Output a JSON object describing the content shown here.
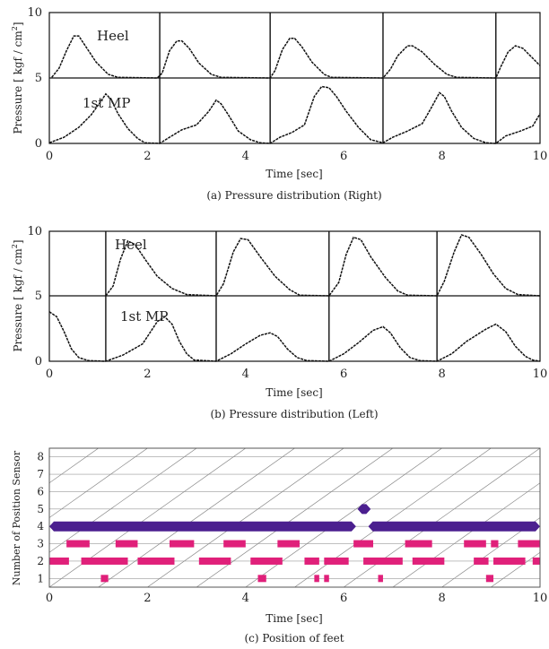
{
  "chart_data": [
    {
      "type": "line",
      "caption": "(a) Pressure distribution (Right)",
      "xlabel": "Time [sec]",
      "ylabel": "Pressure [ kgf / cm",
      "ylabel_sup": "2",
      "ylabel_end": "]",
      "xlim": [
        0,
        10
      ],
      "x_ticks": [
        "0",
        "2",
        "4",
        "6",
        "8",
        "10"
      ],
      "ylim_each": [
        0,
        5
      ],
      "y_ticks": [
        "0",
        "5",
        "10"
      ],
      "step_markers": [
        2.25,
        4.5,
        6.8,
        9.1
      ],
      "series": [
        {
          "name": "Heel",
          "points": [
            [
              0.05,
              0.05
            ],
            [
              0.2,
              0.8
            ],
            [
              0.35,
              2.2
            ],
            [
              0.5,
              3.4
            ],
            [
              0.6,
              3.4
            ],
            [
              0.75,
              2.5
            ],
            [
              0.95,
              1.3
            ],
            [
              1.2,
              0.3
            ],
            [
              1.4,
              0.05
            ],
            [
              2.2,
              0.0
            ],
            [
              2.3,
              0.4
            ],
            [
              2.45,
              2.2
            ],
            [
              2.6,
              3.0
            ],
            [
              2.7,
              3.0
            ],
            [
              2.85,
              2.4
            ],
            [
              3.05,
              1.2
            ],
            [
              3.3,
              0.3
            ],
            [
              3.5,
              0.05
            ],
            [
              4.5,
              0.0
            ],
            [
              4.6,
              0.6
            ],
            [
              4.75,
              2.3
            ],
            [
              4.9,
              3.2
            ],
            [
              5.0,
              3.2
            ],
            [
              5.15,
              2.5
            ],
            [
              5.35,
              1.3
            ],
            [
              5.6,
              0.3
            ],
            [
              5.75,
              0.05
            ],
            [
              6.8,
              0.0
            ],
            [
              6.95,
              0.7
            ],
            [
              7.1,
              1.8
            ],
            [
              7.3,
              2.6
            ],
            [
              7.4,
              2.6
            ],
            [
              7.6,
              2.1
            ],
            [
              7.85,
              1.1
            ],
            [
              8.1,
              0.3
            ],
            [
              8.3,
              0.05
            ],
            [
              9.1,
              0.0
            ],
            [
              9.2,
              0.9
            ],
            [
              9.35,
              2.1
            ],
            [
              9.5,
              2.6
            ],
            [
              9.65,
              2.4
            ],
            [
              9.85,
              1.6
            ],
            [
              10.0,
              1.0
            ]
          ]
        },
        {
          "name": "1st MP",
          "points": [
            [
              0.0,
              0.05
            ],
            [
              0.3,
              0.5
            ],
            [
              0.6,
              1.3
            ],
            [
              0.85,
              2.3
            ],
            [
              1.05,
              3.4
            ],
            [
              1.15,
              4.0
            ],
            [
              1.25,
              3.6
            ],
            [
              1.4,
              2.4
            ],
            [
              1.6,
              1.2
            ],
            [
              1.8,
              0.4
            ],
            [
              1.95,
              0.05
            ],
            [
              2.25,
              0.0
            ],
            [
              2.45,
              0.5
            ],
            [
              2.7,
              1.1
            ],
            [
              3.0,
              1.5
            ],
            [
              3.25,
              2.6
            ],
            [
              3.4,
              3.5
            ],
            [
              3.5,
              3.2
            ],
            [
              3.65,
              2.3
            ],
            [
              3.85,
              1.0
            ],
            [
              4.1,
              0.3
            ],
            [
              4.3,
              0.05
            ],
            [
              4.5,
              0.0
            ],
            [
              4.7,
              0.5
            ],
            [
              4.95,
              0.9
            ],
            [
              5.2,
              1.5
            ],
            [
              5.4,
              3.8
            ],
            [
              5.55,
              4.6
            ],
            [
              5.7,
              4.5
            ],
            [
              5.85,
              3.8
            ],
            [
              6.05,
              2.6
            ],
            [
              6.3,
              1.3
            ],
            [
              6.55,
              0.3
            ],
            [
              6.8,
              0.05
            ],
            [
              7.0,
              0.5
            ],
            [
              7.3,
              1.0
            ],
            [
              7.6,
              1.6
            ],
            [
              7.8,
              3.0
            ],
            [
              7.95,
              4.1
            ],
            [
              8.05,
              3.8
            ],
            [
              8.2,
              2.6
            ],
            [
              8.4,
              1.3
            ],
            [
              8.65,
              0.4
            ],
            [
              8.9,
              0.05
            ],
            [
              9.1,
              0.0
            ],
            [
              9.3,
              0.6
            ],
            [
              9.6,
              1.0
            ],
            [
              9.85,
              1.4
            ],
            [
              10.0,
              2.4
            ]
          ]
        }
      ]
    },
    {
      "type": "line",
      "caption": "(b) Pressure distribution (Left)",
      "xlabel": "Time [sec]",
      "ylabel": "Pressure [ kgf / cm",
      "ylabel_sup": "2",
      "ylabel_end": "]",
      "xlim": [
        0,
        10
      ],
      "x_ticks": [
        "0",
        "2",
        "4",
        "6",
        "8",
        "10"
      ],
      "ylim_each": [
        0,
        5
      ],
      "y_ticks": [
        "0",
        "5",
        "10"
      ],
      "step_markers": [
        1.15,
        3.4,
        5.7,
        7.9
      ],
      "series": [
        {
          "name": "Heel",
          "points": [
            [
              1.15,
              0.0
            ],
            [
              1.3,
              0.8
            ],
            [
              1.45,
              3.0
            ],
            [
              1.6,
              4.5
            ],
            [
              1.75,
              4.2
            ],
            [
              1.95,
              3.0
            ],
            [
              2.2,
              1.6
            ],
            [
              2.5,
              0.6
            ],
            [
              2.8,
              0.1
            ],
            [
              3.4,
              0.0
            ],
            [
              3.55,
              1.0
            ],
            [
              3.75,
              3.6
            ],
            [
              3.9,
              4.7
            ],
            [
              4.05,
              4.6
            ],
            [
              4.3,
              3.2
            ],
            [
              4.6,
              1.6
            ],
            [
              4.9,
              0.5
            ],
            [
              5.1,
              0.05
            ],
            [
              5.7,
              0.0
            ],
            [
              5.9,
              1.1
            ],
            [
              6.05,
              3.4
            ],
            [
              6.2,
              4.8
            ],
            [
              6.35,
              4.6
            ],
            [
              6.55,
              3.2
            ],
            [
              6.85,
              1.5
            ],
            [
              7.1,
              0.4
            ],
            [
              7.3,
              0.05
            ],
            [
              7.9,
              0.0
            ],
            [
              8.05,
              1.2
            ],
            [
              8.25,
              3.6
            ],
            [
              8.4,
              5.0
            ],
            [
              8.55,
              4.8
            ],
            [
              8.8,
              3.4
            ],
            [
              9.05,
              1.8
            ],
            [
              9.3,
              0.6
            ],
            [
              9.55,
              0.1
            ],
            [
              10.0,
              0.0
            ]
          ]
        },
        {
          "name": "1st MP",
          "points": [
            [
              0.0,
              4.0
            ],
            [
              0.15,
              3.6
            ],
            [
              0.3,
              2.4
            ],
            [
              0.45,
              1.0
            ],
            [
              0.6,
              0.3
            ],
            [
              0.8,
              0.05
            ],
            [
              1.15,
              0.0
            ],
            [
              1.5,
              0.5
            ],
            [
              1.9,
              1.4
            ],
            [
              2.2,
              3.2
            ],
            [
              2.35,
              3.6
            ],
            [
              2.5,
              3.0
            ],
            [
              2.65,
              1.6
            ],
            [
              2.8,
              0.6
            ],
            [
              2.95,
              0.1
            ],
            [
              3.4,
              0.0
            ],
            [
              3.7,
              0.6
            ],
            [
              4.0,
              1.4
            ],
            [
              4.3,
              2.1
            ],
            [
              4.5,
              2.3
            ],
            [
              4.65,
              2.0
            ],
            [
              4.85,
              1.0
            ],
            [
              5.05,
              0.3
            ],
            [
              5.25,
              0.05
            ],
            [
              5.7,
              0.0
            ],
            [
              6.0,
              0.6
            ],
            [
              6.3,
              1.5
            ],
            [
              6.6,
              2.5
            ],
            [
              6.8,
              2.8
            ],
            [
              6.95,
              2.3
            ],
            [
              7.15,
              1.1
            ],
            [
              7.35,
              0.3
            ],
            [
              7.55,
              0.05
            ],
            [
              7.9,
              0.0
            ],
            [
              8.2,
              0.6
            ],
            [
              8.5,
              1.6
            ],
            [
              8.9,
              2.6
            ],
            [
              9.1,
              3.0
            ],
            [
              9.3,
              2.4
            ],
            [
              9.5,
              1.2
            ],
            [
              9.7,
              0.4
            ],
            [
              9.85,
              0.1
            ],
            [
              10.0,
              0.0
            ]
          ]
        }
      ]
    },
    {
      "type": "timeline",
      "caption": "(c) Position of feet",
      "xlabel": "Time [sec]",
      "ylabel": "Number of Position Sensor",
      "xlim": [
        0,
        10
      ],
      "ylim": [
        0.5,
        8.5
      ],
      "x_ticks": [
        "0",
        "2",
        "4",
        "6",
        "8",
        "10"
      ],
      "y_ticks": [
        "1",
        "2",
        "3",
        "4",
        "5",
        "6",
        "7",
        "8"
      ],
      "diagonal_grid": true,
      "colors": {
        "left_foot": "#4b1f8f",
        "right_foot": "#e0207a"
      },
      "left_foot_segments": [
        {
          "sensor": 4,
          "start": 0.0,
          "end": 6.25
        },
        {
          "sensor": 5,
          "start": 6.28,
          "end": 6.55
        },
        {
          "sensor": 4,
          "start": 6.5,
          "end": 10.0
        }
      ],
      "right_foot_segments": [
        {
          "sensor": 3,
          "start": 0.35,
          "end": 0.82
        },
        {
          "sensor": 3,
          "start": 1.35,
          "end": 1.8
        },
        {
          "sensor": 3,
          "start": 2.45,
          "end": 2.95
        },
        {
          "sensor": 3,
          "start": 3.55,
          "end": 4.0
        },
        {
          "sensor": 3,
          "start": 4.65,
          "end": 5.1
        },
        {
          "sensor": 3,
          "start": 6.2,
          "end": 6.6
        },
        {
          "sensor": 3,
          "start": 7.25,
          "end": 7.8
        },
        {
          "sensor": 3,
          "start": 8.45,
          "end": 8.9
        },
        {
          "sensor": 3,
          "start": 9.0,
          "end": 9.15
        },
        {
          "sensor": 3,
          "start": 9.55,
          "end": 10.0
        },
        {
          "sensor": 2,
          "start": 0.0,
          "end": 0.4
        },
        {
          "sensor": 2,
          "start": 0.65,
          "end": 1.6
        },
        {
          "sensor": 2,
          "start": 1.8,
          "end": 2.55
        },
        {
          "sensor": 2,
          "start": 3.05,
          "end": 3.7
        },
        {
          "sensor": 2,
          "start": 4.1,
          "end": 4.75
        },
        {
          "sensor": 2,
          "start": 5.2,
          "end": 5.5
        },
        {
          "sensor": 2,
          "start": 5.6,
          "end": 6.1
        },
        {
          "sensor": 2,
          "start": 6.4,
          "end": 7.2
        },
        {
          "sensor": 2,
          "start": 7.4,
          "end": 8.05
        },
        {
          "sensor": 2,
          "start": 8.65,
          "end": 8.95
        },
        {
          "sensor": 2,
          "start": 9.05,
          "end": 9.7
        },
        {
          "sensor": 2,
          "start": 9.85,
          "end": 10.0
        },
        {
          "sensor": 1,
          "start": 1.05,
          "end": 1.2
        },
        {
          "sensor": 1,
          "start": 4.25,
          "end": 4.42
        },
        {
          "sensor": 1,
          "start": 5.4,
          "end": 5.5
        },
        {
          "sensor": 1,
          "start": 5.6,
          "end": 5.7
        },
        {
          "sensor": 1,
          "start": 6.7,
          "end": 6.8
        },
        {
          "sensor": 1,
          "start": 8.9,
          "end": 9.05
        }
      ]
    }
  ]
}
